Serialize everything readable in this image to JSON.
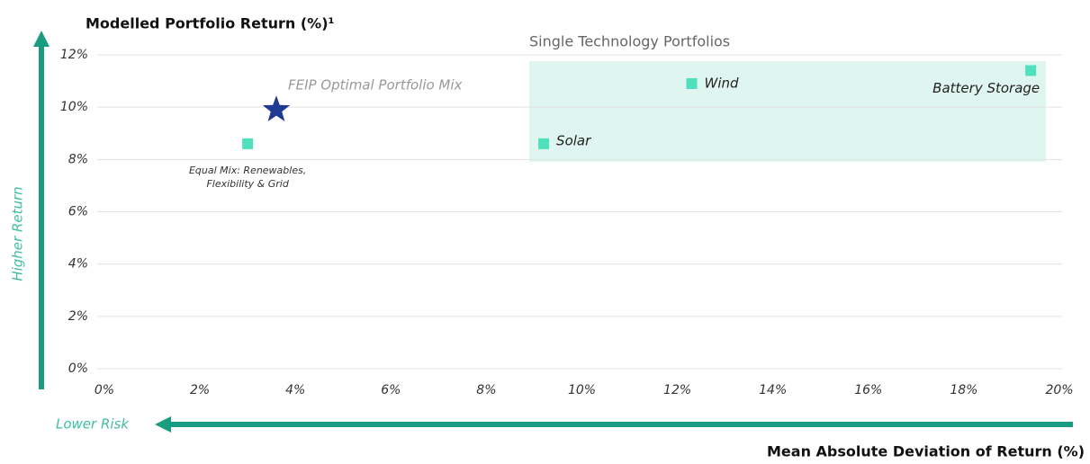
{
  "chart_data": {
    "type": "scatter",
    "y_title": "Modelled Portfolio Return (%)¹",
    "x_title": "Mean Absolute Deviation of Return (%)",
    "y_arrow_label": "Higher Return",
    "x_arrow_label": "Lower Risk",
    "region_label": "Single Technology Portfolios",
    "xlim": [
      0,
      20
    ],
    "ylim": [
      0,
      12
    ],
    "xticks": [
      {
        "value": 0,
        "label": "0%"
      },
      {
        "value": 2,
        "label": "2%"
      },
      {
        "value": 4,
        "label": "4%"
      },
      {
        "value": 6,
        "label": "6%"
      },
      {
        "value": 8,
        "label": "8%"
      },
      {
        "value": 10,
        "label": "10%"
      },
      {
        "value": 12,
        "label": "12%"
      },
      {
        "value": 14,
        "label": "14%"
      },
      {
        "value": 16,
        "label": "16%"
      },
      {
        "value": 18,
        "label": "18%"
      },
      {
        "value": 20,
        "label": "20%"
      }
    ],
    "yticks": [
      {
        "value": 0,
        "label": "0%"
      },
      {
        "value": 2,
        "label": "2%"
      },
      {
        "value": 4,
        "label": "4%"
      },
      {
        "value": 6,
        "label": "6%"
      },
      {
        "value": 8,
        "label": "8%"
      },
      {
        "value": 10,
        "label": "10%"
      },
      {
        "value": 12,
        "label": "12%"
      }
    ],
    "grid": true,
    "points": [
      {
        "label": [
          "Equal Mix: Renewables,",
          "Flexibility & Grid"
        ],
        "x": 3.0,
        "y": 8.6,
        "color": "#4fe0bd",
        "marker": "square"
      },
      {
        "label": [
          "FEIP Optimal Portfolio Mix"
        ],
        "x": 3.6,
        "y": 9.9,
        "color": "#1f3a93",
        "marker": "star"
      },
      {
        "label": [
          "Solar"
        ],
        "x": 9.2,
        "y": 8.6,
        "color": "#4fe0bd",
        "marker": "square"
      },
      {
        "label": [
          "Wind"
        ],
        "x": 12.3,
        "y": 10.9,
        "color": "#4fe0bd",
        "marker": "square"
      },
      {
        "label": [
          "Battery Storage"
        ],
        "x": 19.4,
        "y": 11.4,
        "color": "#4fe0bd",
        "marker": "square"
      }
    ]
  }
}
